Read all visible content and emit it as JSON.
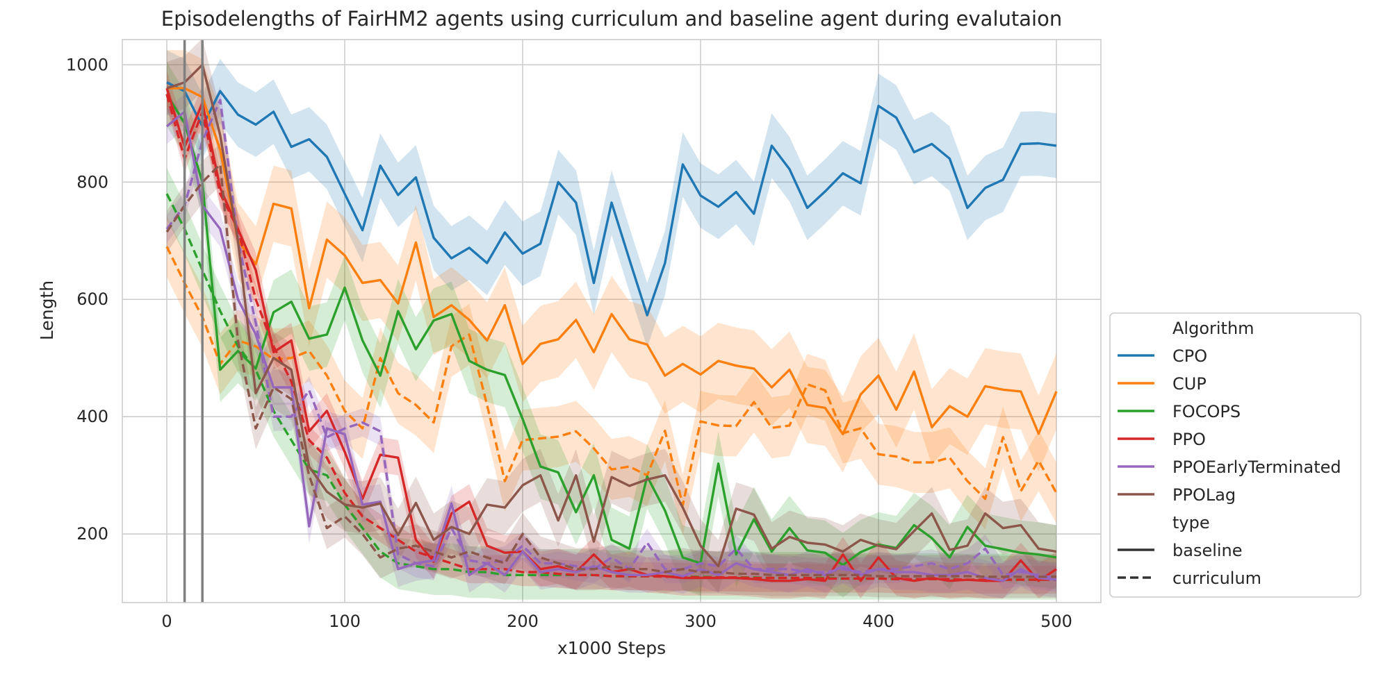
{
  "chart_data": {
    "type": "line",
    "title": "Episodelengths of FairHM2 agents using curriculum and baseline agent during evalutaion",
    "xlabel": "x1000 Steps",
    "ylabel": "Length",
    "xlim": [
      -25,
      525
    ],
    "ylim": [
      83,
      1043
    ],
    "xticks": [
      0,
      100,
      200,
      300,
      400,
      500
    ],
    "yticks": [
      200,
      400,
      600,
      800,
      1000
    ],
    "grid": true,
    "legend_position": "right",
    "vlines": [
      10,
      20
    ],
    "x": [
      0,
      10,
      20,
      30,
      40,
      50,
      60,
      70,
      80,
      90,
      100,
      110,
      120,
      130,
      140,
      150,
      160,
      170,
      180,
      190,
      200,
      210,
      220,
      230,
      240,
      250,
      260,
      270,
      280,
      290,
      300,
      310,
      320,
      330,
      340,
      350,
      360,
      370,
      380,
      390,
      400,
      410,
      420,
      430,
      440,
      450,
      460,
      470,
      480,
      490,
      500
    ],
    "legend": {
      "algorithm_title": "Algorithm",
      "type_title": "type",
      "type_entries": [
        "baseline",
        "curriculum"
      ]
    },
    "series": [
      {
        "name": "CPO",
        "color": "#1f77b4",
        "baseline": [
          970,
          955,
          895,
          955,
          915,
          898,
          920,
          860,
          873,
          843,
          780,
          718,
          828,
          778,
          808,
          705,
          670,
          688,
          662,
          714,
          678,
          695,
          800,
          765,
          628,
          765,
          668,
          573,
          662,
          830,
          777,
          758,
          783,
          746,
          862,
          822,
          756,
          784,
          815,
          798,
          930,
          910,
          851,
          865,
          840,
          756,
          790,
          804,
          865,
          866,
          862
        ],
        "baseline_band": 55,
        "curriculum": null
      },
      {
        "name": "CUP",
        "color": "#ff7f0e",
        "baseline": [
          960,
          960,
          945,
          855,
          700,
          660,
          763,
          755,
          585,
          702,
          675,
          628,
          633,
          593,
          697,
          570,
          590,
          565,
          530,
          590,
          490,
          524,
          532,
          565,
          510,
          575,
          532,
          523,
          470,
          490,
          472,
          495,
          487,
          482,
          450,
          480,
          420,
          415,
          370,
          438,
          470,
          412,
          477,
          382,
          418,
          400,
          452,
          446,
          443,
          371,
          443
        ],
        "baseline_band": 65,
        "curriculum": [
          690,
          628,
          570,
          490,
          530,
          520,
          498,
          500,
          512,
          470,
          410,
          380,
          500,
          440,
          420,
          390,
          520,
          540,
          420,
          290,
          360,
          363,
          366,
          375,
          346,
          310,
          315,
          300,
          376,
          249,
          392,
          385,
          384,
          425,
          381,
          385,
          455,
          445,
          372,
          380,
          336,
          332,
          322,
          322,
          330,
          290,
          260,
          365,
          273,
          325,
          270
        ]
      },
      {
        "name": "FOCOPS",
        "color": "#2ca02c",
        "baseline": [
          950,
          900,
          800,
          480,
          512,
          482,
          578,
          596,
          533,
          540,
          620,
          530,
          470,
          580,
          515,
          564,
          575,
          495,
          480,
          471,
          396,
          315,
          305,
          237,
          300,
          190,
          175,
          298,
          240,
          160,
          150,
          320,
          165,
          225,
          170,
          210,
          172,
          168,
          147,
          169,
          182,
          176,
          215,
          193,
          160,
          212,
          180,
          174,
          168,
          165,
          160
        ],
        "baseline_band": 55,
        "curriculum": [
          780,
          720,
          650,
          580,
          520,
          480,
          410,
          360,
          310,
          300,
          250,
          210,
          170,
          150,
          145,
          140,
          140,
          135,
          135,
          130,
          130,
          130,
          130,
          130,
          130,
          128,
          128,
          128,
          128,
          127,
          127,
          126,
          126,
          126,
          125,
          125,
          125,
          125,
          124,
          124,
          124,
          123,
          123,
          123,
          123,
          122,
          122,
          122,
          122,
          122,
          122
        ]
      },
      {
        "name": "PPO",
        "color": "#d62728",
        "baseline": [
          960,
          860,
          935,
          790,
          720,
          650,
          510,
          530,
          375,
          410,
          340,
          260,
          335,
          330,
          190,
          153,
          235,
          255,
          180,
          168,
          170,
          140,
          145,
          135,
          165,
          135,
          140,
          130,
          128,
          125,
          125,
          125,
          125,
          123,
          120,
          120,
          123,
          120,
          165,
          120,
          160,
          125,
          120,
          125,
          120,
          122,
          120,
          120,
          155,
          120,
          140
        ],
        "baseline_band": 30,
        "curriculum": [
          950,
          840,
          920,
          780,
          720,
          600,
          520,
          460,
          360,
          330,
          270,
          230,
          210,
          190,
          170,
          160,
          150,
          140,
          140,
          140,
          135,
          135,
          132,
          130,
          130,
          128,
          128,
          128,
          127,
          127,
          126,
          126,
          126,
          125,
          125,
          125,
          125,
          124,
          124,
          124,
          124,
          123,
          123,
          123,
          123,
          122,
          122,
          122,
          122,
          122,
          122
        ]
      },
      {
        "name": "PPOEarlyTerminated",
        "color": "#9467bd",
        "baseline": [
          895,
          920,
          760,
          720,
          600,
          540,
          450,
          450,
          213,
          380,
          370,
          250,
          255,
          140,
          150,
          155,
          252,
          130,
          150,
          130,
          170,
          135,
          140,
          135,
          145,
          135,
          130,
          130,
          135,
          128,
          140,
          130,
          150,
          140,
          135,
          130,
          140,
          130,
          145,
          130,
          140,
          135,
          135,
          130,
          130,
          135,
          125,
          120,
          140,
          125,
          122
        ],
        "baseline_band": 30,
        "curriculum": [
          720,
          760,
          870,
          940,
          700,
          560,
          400,
          400,
          445,
          365,
          380,
          390,
          375,
          165,
          150,
          145,
          210,
          155,
          150,
          155,
          180,
          150,
          150,
          145,
          140,
          160,
          140,
          185,
          140,
          140,
          150,
          145,
          175,
          140,
          140,
          140,
          135,
          135,
          140,
          135,
          140,
          140,
          145,
          150,
          140,
          150,
          175,
          130,
          135,
          130,
          125
        ]
      },
      {
        "name": "PPOLag",
        "color": "#8c564b",
        "baseline": [
          960,
          970,
          1000,
          880,
          700,
          440,
          500,
          480,
          315,
          272,
          250,
          245,
          252,
          198,
          253,
          190,
          212,
          200,
          250,
          245,
          283,
          300,
          223,
          300,
          187,
          297,
          282,
          293,
          300,
          245,
          180,
          145,
          243,
          233,
          175,
          195,
          185,
          182,
          170,
          190,
          180,
          174,
          205,
          235,
          173,
          180,
          235,
          210,
          215,
          175,
          170
        ],
        "baseline_band": 45,
        "curriculum": [
          715,
          760,
          800,
          830,
          530,
          380,
          450,
          430,
          300,
          210,
          230,
          200,
          160,
          175,
          180,
          170,
          160,
          170,
          160,
          150,
          200,
          160,
          150,
          140,
          140,
          145,
          140,
          140,
          135,
          140,
          135,
          135,
          132,
          132,
          130,
          130,
          130,
          130,
          130,
          130,
          128,
          128,
          128,
          128,
          128,
          128,
          127,
          127,
          127,
          127,
          127
        ]
      }
    ]
  }
}
